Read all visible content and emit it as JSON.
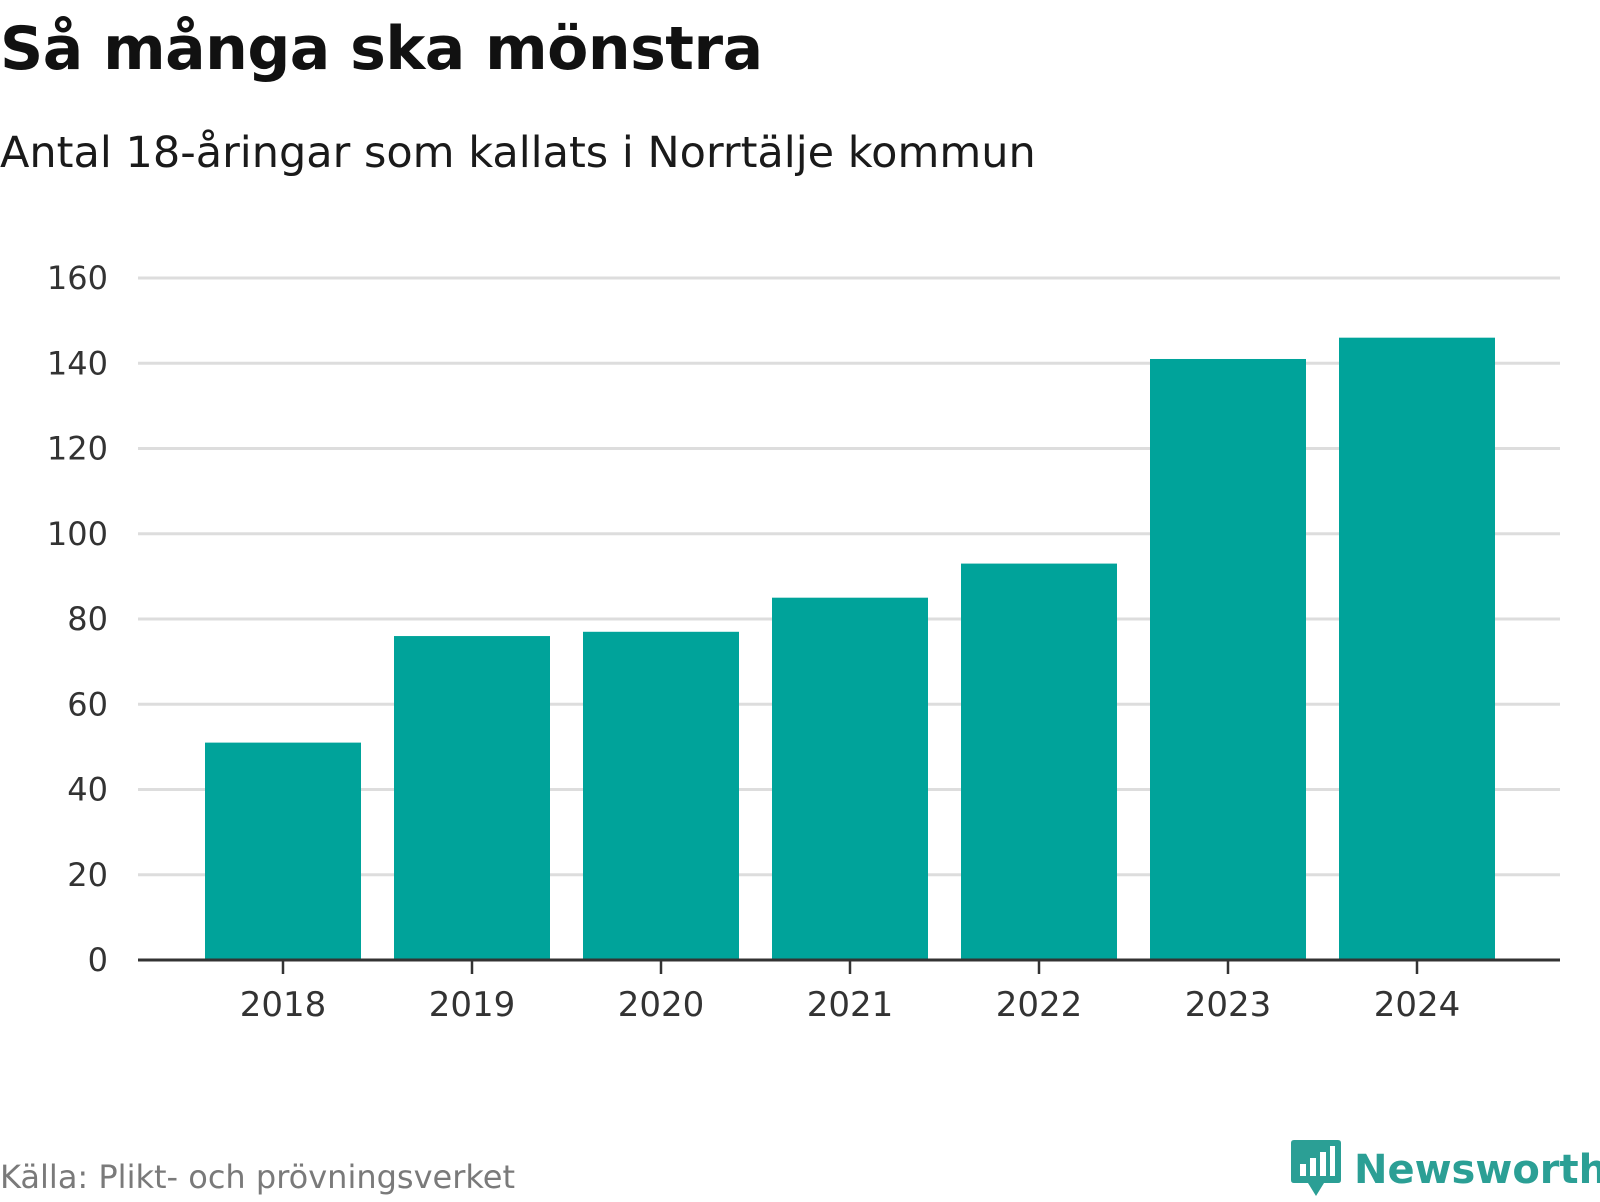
{
  "chart_data": {
    "type": "bar",
    "title": "Så många ska mönstra",
    "subtitle": "Antal 18-åringar som kallats i Norrtälje kommun",
    "categories": [
      "2018",
      "2019",
      "2020",
      "2021",
      "2022",
      "2023",
      "2024"
    ],
    "values": [
      51,
      76,
      77,
      85,
      93,
      141,
      146
    ],
    "ylim": [
      0,
      160
    ],
    "yticks": [
      "0",
      "20",
      "40",
      "60",
      "80",
      "100",
      "120",
      "140",
      "160"
    ],
    "xlabel": "",
    "ylabel": "",
    "grid": true,
    "bar_color": "#00a39a"
  },
  "footer": {
    "source": "Källa: Plikt- och prövningsverket",
    "brand": "Newsworthy",
    "brand_icon": "newsworthy-logo-icon",
    "brand_color": "#2b9f95"
  }
}
